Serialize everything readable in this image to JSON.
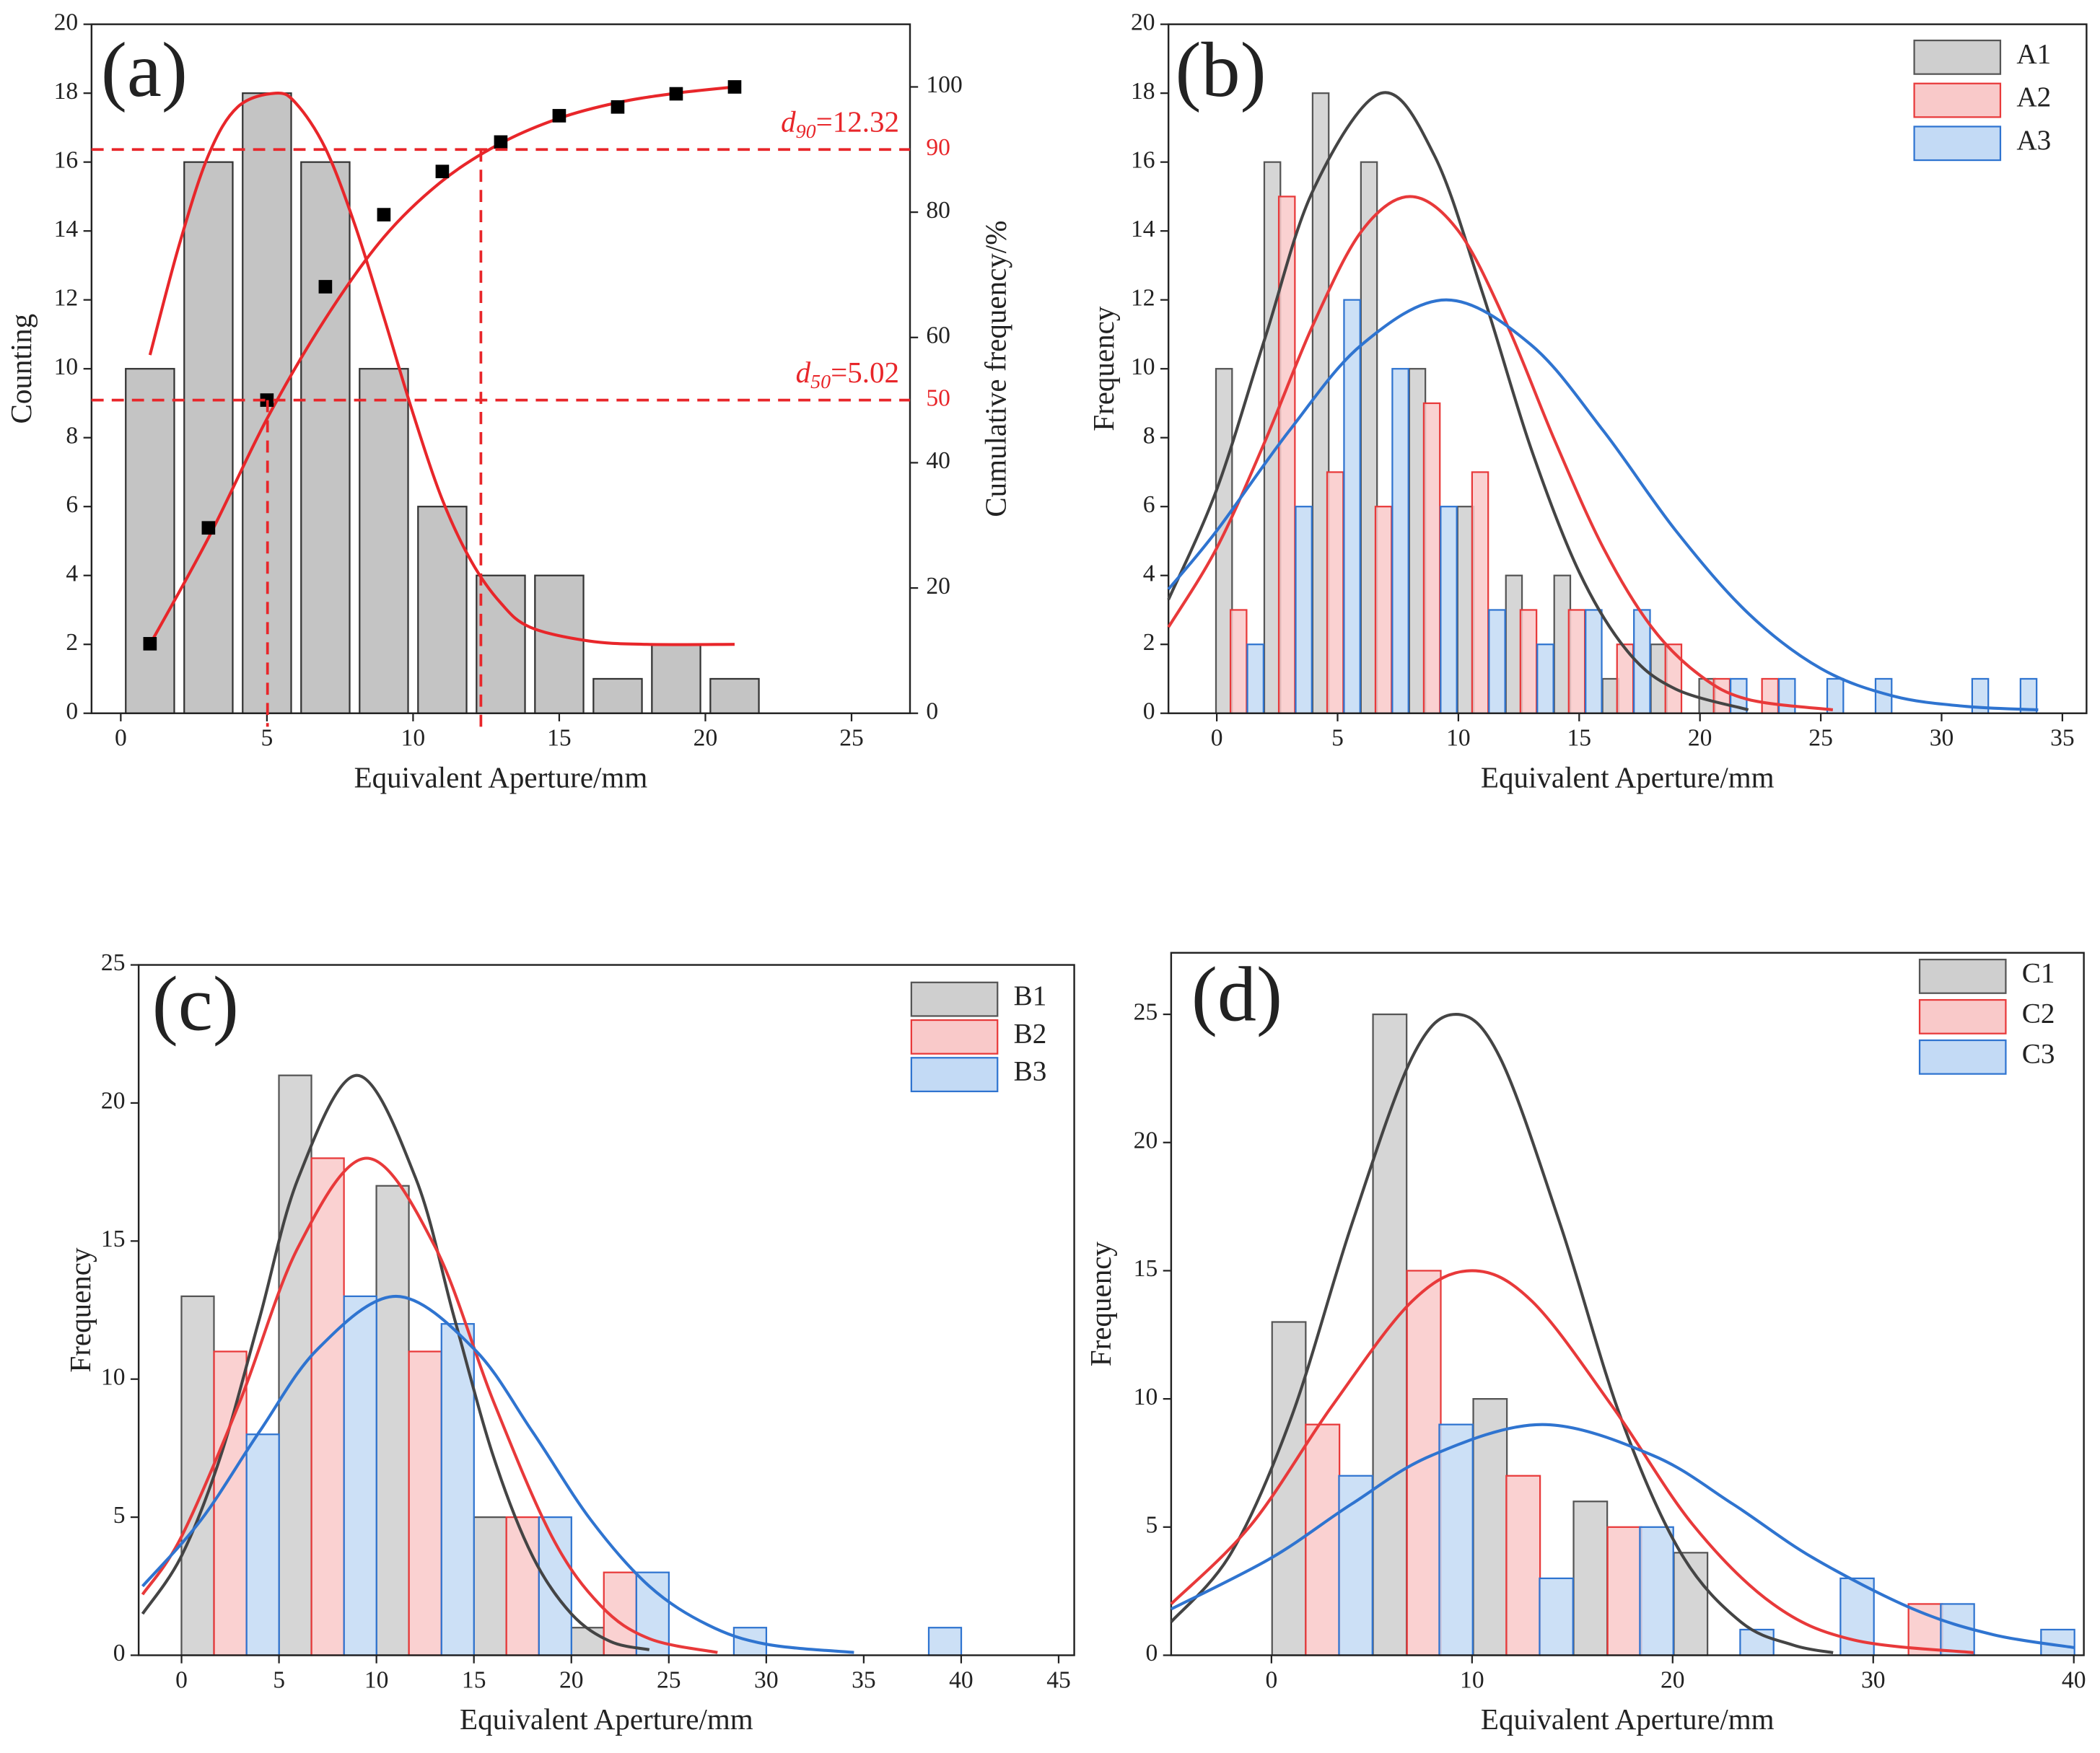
{
  "chart_data": [
    {
      "type": "bar",
      "panel_label": "(a)",
      "xlabel": "Equivalent Aperture/mm",
      "ylabel": "Counting",
      "y2label": "Cumulative frequency/%",
      "xlim": [
        -1,
        27
      ],
      "xticks": [
        0,
        5,
        10,
        15,
        20,
        25
      ],
      "ylim": [
        0,
        20
      ],
      "yticks": [
        0,
        2,
        4,
        6,
        8,
        10,
        12,
        14,
        16,
        18,
        20
      ],
      "y2lim": [
        0,
        110
      ],
      "y2ticks": [
        0,
        20,
        40,
        60,
        80,
        100
      ],
      "series": [
        {
          "color": "#333333",
          "fill": "#c4c4c4",
          "x": [
            1,
            3,
            5,
            7,
            9,
            11,
            13,
            15,
            17,
            19,
            21
          ],
          "values": [
            10,
            16,
            18,
            16,
            10,
            6,
            4,
            4,
            1,
            2,
            1
          ],
          "fit": {
            "color": "#e8262a",
            "x": [
              1,
              2,
              3,
              4,
              5.3,
              6,
              7,
              8,
              9,
              10,
              11,
              12,
              13,
              14,
              16,
              18,
              21
            ],
            "values": [
              10.4,
              13.6,
              16.2,
              17.6,
              18,
              17.7,
              16.4,
              14.2,
              11.5,
              8.7,
              6.2,
              4.4,
              3.2,
              2.5,
              2.1,
              2,
              2
            ]
          }
        },
        {
          "type": "scatter",
          "axis": "y2",
          "color": "#000000",
          "x": [
            1,
            3,
            5,
            7,
            9,
            11,
            13,
            15,
            17,
            19,
            21
          ],
          "values": [
            11.1,
            29.6,
            50,
            68.1,
            79.6,
            86.5,
            91.2,
            95.4,
            96.8,
            98.9,
            100
          ],
          "fit": {
            "color": "#e8262a",
            "x": [
              1,
              3,
              5,
              7,
              9,
              11,
              13,
              15,
              17,
              19,
              21
            ],
            "values": [
              11,
              28,
              47,
              63,
              76,
              85,
              91,
              95,
              97.5,
              99,
              100
            ]
          }
        }
      ],
      "ref_lines": [
        {
          "value": 50,
          "x": 5.02,
          "color": "#e8262a",
          "label": [
            "d",
            "50",
            "=5.02"
          ]
        },
        {
          "value": 90,
          "x": 12.32,
          "color": "#e8262a",
          "label": [
            "d",
            "90",
            "=12.32"
          ]
        }
      ]
    },
    {
      "type": "bar",
      "panel_label": "(b)",
      "xlabel": "Equivalent Aperture/mm",
      "ylabel": "Frequency",
      "xlim": [
        -2,
        36
      ],
      "xticks": [
        0,
        5,
        10,
        15,
        20,
        25,
        30,
        35
      ],
      "ylim": [
        0,
        20
      ],
      "yticks": [
        0,
        2,
        4,
        6,
        8,
        10,
        12,
        14,
        16,
        18,
        20
      ],
      "series": [
        {
          "name": "A1",
          "color": "#555555",
          "fill": "#cfcfcf",
          "x": [
            0.3,
            2.3,
            4.3,
            6.3,
            8.3,
            10.3,
            12.3,
            14.3,
            16.3,
            18.3,
            20.3
          ],
          "values": [
            10,
            16,
            18,
            16,
            10,
            6,
            4,
            4,
            1,
            2,
            1
          ],
          "fit": {
            "color": "#444444",
            "x": [
              -2,
              0,
              2,
              4,
              6.8,
              9,
              11,
              13,
              15,
              17,
              19,
              22
            ],
            "values": [
              3.3,
              6.5,
              10.9,
              15.2,
              18,
              16.2,
              12.2,
              7.7,
              4.1,
              1.8,
              0.7,
              0.1
            ]
          }
        },
        {
          "name": "A2",
          "color": "#e8393a",
          "fill": "#f9c9c9",
          "x": [
            0.9,
            2.9,
            4.9,
            6.9,
            8.9,
            10.9,
            12.9,
            14.9,
            16.9,
            18.9,
            20.9,
            22.9
          ],
          "values": [
            3,
            15,
            7,
            6,
            9,
            7,
            3,
            3,
            2,
            2,
            1,
            1
          ],
          "fit": {
            "color": "#e8393a",
            "x": [
              -2,
              0,
              2,
              4,
              6,
              8,
              10,
              12,
              14,
              16,
              18,
              20,
              22,
              25.5
            ],
            "values": [
              2.5,
              4.8,
              7.9,
              11.3,
              14,
              15,
              14,
              11.3,
              7.9,
              4.8,
              2.5,
              1.1,
              0.4,
              0.1
            ]
          }
        },
        {
          "name": "A3",
          "color": "#2f74d0",
          "fill": "#c3daf5",
          "x": [
            1.6,
            3.6,
            5.6,
            7.6,
            9.6,
            11.6,
            13.6,
            15.6,
            17.6,
            21.6,
            23.6,
            25.6,
            27.6,
            31.6,
            33.6
          ],
          "values": [
            2,
            6,
            12,
            10,
            6,
            3,
            2,
            3,
            3,
            1,
            1,
            1,
            1,
            1,
            1
          ],
          "fit": {
            "color": "#2f74d0",
            "x": [
              -2,
              0,
              3,
              6,
              9.5,
              13,
              16,
              19,
              22,
              25,
              28,
              31,
              34
            ],
            "values": [
              3.6,
              5.3,
              8.2,
              10.7,
              12,
              10.7,
              8.2,
              5.3,
              2.9,
              1.3,
              0.5,
              0.2,
              0.1
            ]
          }
        }
      ]
    },
    {
      "type": "bar",
      "panel_label": "(c)",
      "xlabel": "Equivalent Aperture/mm",
      "ylabel": "Frequency",
      "xlim": [
        -2.2,
        45.8
      ],
      "xticks": [
        0,
        5,
        10,
        15,
        20,
        25,
        30,
        35,
        40,
        45
      ],
      "ylim": [
        0,
        25
      ],
      "yticks": [
        0,
        5,
        10,
        15,
        20,
        25
      ],
      "series": [
        {
          "name": "B1",
          "color": "#555555",
          "fill": "#cfcfcf",
          "x": [
            0.83,
            5.83,
            10.83,
            15.83,
            20.83
          ],
          "values": [
            13,
            21,
            17,
            5,
            1
          ],
          "fit": {
            "color": "#444444",
            "x": [
              -2,
              0,
              2,
              4,
              6,
              9,
              12,
              14,
              16,
              18,
              20,
              22,
              24
            ],
            "values": [
              1.5,
              3.6,
              7.2,
              12.2,
              17.3,
              21,
              17.3,
              12.2,
              7.2,
              3.6,
              1.5,
              0.5,
              0.2
            ]
          }
        },
        {
          "name": "B2",
          "color": "#e8393a",
          "fill": "#f9c9c9",
          "x": [
            2.5,
            7.5,
            12.5,
            17.5,
            22.5
          ],
          "values": [
            11,
            18,
            11,
            5,
            3
          ],
          "fit": {
            "color": "#e8393a",
            "x": [
              -2,
              0,
              3,
              6,
              9.5,
              13,
              16,
              19,
              21.5,
              24,
              27.5
            ],
            "values": [
              2.2,
              4.3,
              9.2,
              14.8,
              18,
              14.8,
              9.2,
              4.3,
              1.8,
              0.6,
              0.1
            ]
          }
        },
        {
          "name": "B3",
          "color": "#2f74d0",
          "fill": "#c3daf5",
          "x": [
            4.17,
            9.17,
            14.17,
            19.17,
            24.17,
            29.17,
            39.17
          ],
          "values": [
            8,
            13,
            12,
            5,
            3,
            1,
            1
          ],
          "fit": {
            "color": "#2f74d0",
            "x": [
              -2,
              1,
              4,
              7,
              11,
              15,
              18,
              21,
              24,
              27,
              30,
              34.5
            ],
            "values": [
              2.5,
              4.9,
              8.1,
              11.1,
              13,
              11.1,
              8.1,
              4.9,
              2.5,
              1.1,
              0.4,
              0.1
            ]
          }
        }
      ]
    },
    {
      "type": "bar",
      "panel_label": "(d)",
      "xlabel": "Equivalent Aperture/mm",
      "ylabel": "Frequency",
      "xlim": [
        -5,
        40.5
      ],
      "xticks": [
        0,
        10,
        20,
        30,
        40
      ],
      "ylim": [
        0,
        27.4
      ],
      "yticks": [
        0,
        5,
        10,
        15,
        20,
        25
      ],
      "series": [
        {
          "name": "C1",
          "color": "#555555",
          "fill": "#cfcfcf",
          "x": [
            0.87,
            5.9,
            10.9,
            15.9,
            20.9
          ],
          "values": [
            13,
            25,
            10,
            6,
            4
          ],
          "fit": {
            "color": "#444444",
            "x": [
              -5,
              -2,
              1,
              4,
              7,
              9.2,
              11.4,
              14.4,
              17.4,
              20.4,
              23.4,
              26,
              28
            ],
            "values": [
              1.3,
              4,
              9.3,
              16.8,
              23.3,
              25,
              23.3,
              16.8,
              9.3,
              4,
              1.3,
              0.4,
              0.1
            ]
          }
        },
        {
          "name": "C2",
          "color": "#e8393a",
          "fill": "#f9c9c9",
          "x": [
            2.55,
            7.6,
            12.55,
            17.6,
            32.6
          ],
          "values": [
            9,
            15,
            7,
            5,
            2
          ],
          "fit": {
            "color": "#e8393a",
            "x": [
              -5,
              -1,
              3,
              7,
              10,
              13,
              17,
              21,
              25,
              29,
              35
            ],
            "values": [
              2,
              5.1,
              9.7,
              13.8,
              15,
              13.8,
              9.7,
              5.1,
              2,
              0.6,
              0.1
            ]
          }
        },
        {
          "name": "C3",
          "color": "#2f74d0",
          "fill": "#c3daf5",
          "x": [
            4.2,
            9.2,
            14.2,
            19.2,
            24.2,
            29.2,
            34.2,
            39.2
          ],
          "values": [
            7,
            9,
            3,
            5,
            1,
            3,
            2,
            1
          ],
          "fit": {
            "color": "#2f74d0",
            "x": [
              -5,
              0,
              4,
              8,
              13.5,
              19,
              23,
              27,
              32,
              36,
              40
            ],
            "values": [
              1.8,
              3.8,
              5.9,
              7.8,
              9,
              7.8,
              5.9,
              3.8,
              1.8,
              0.8,
              0.3
            ]
          }
        }
      ]
    }
  ]
}
